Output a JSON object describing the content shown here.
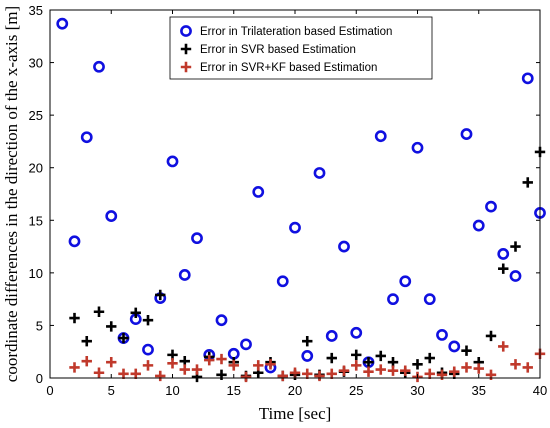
{
  "chart_data": {
    "type": "scatter",
    "title": "",
    "xlabel": "Time [sec]",
    "ylabel": "coordinate differences in the direction of the x-axis [m]",
    "xlim": [
      0,
      40
    ],
    "ylim": [
      0,
      35
    ],
    "x_ticks": [
      "0",
      "5",
      "10",
      "15",
      "20",
      "25",
      "30",
      "35",
      "40"
    ],
    "y_ticks": [
      "0",
      "5",
      "10",
      "15",
      "20",
      "25",
      "30",
      "35"
    ],
    "grid": false,
    "legend_position": "top-center",
    "series": [
      {
        "name": "Error in Trilateration based Estimation",
        "marker": "circle",
        "color": "#1010e0",
        "x": [
          1,
          2,
          3,
          4,
          5,
          6,
          7,
          8,
          9,
          10,
          11,
          12,
          13,
          14,
          15,
          16,
          17,
          18,
          19,
          20,
          21,
          22,
          23,
          24,
          25,
          26,
          27,
          28,
          29,
          30,
          31,
          32,
          33,
          34,
          35,
          36,
          37,
          38,
          39,
          40
        ],
        "y": [
          33.7,
          13.0,
          22.9,
          29.6,
          15.4,
          3.8,
          5.6,
          2.7,
          7.6,
          20.6,
          9.8,
          13.3,
          2.2,
          5.5,
          2.3,
          3.2,
          17.7,
          1.0,
          9.2,
          14.3,
          2.1,
          19.5,
          4.0,
          12.5,
          4.3,
          1.5,
          23.0,
          7.5,
          9.2,
          21.9,
          7.5,
          4.1,
          3.0,
          23.2,
          14.5,
          16.3,
          11.8,
          9.7,
          28.5,
          15.7
        ]
      },
      {
        "name": "Error in SVR based Estimation",
        "marker": "plus",
        "color": "#000000",
        "x": [
          2,
          3,
          4,
          5,
          6,
          7,
          8,
          9,
          10,
          11,
          12,
          13,
          14,
          15,
          16,
          17,
          18,
          19,
          20,
          21,
          22,
          23,
          24,
          25,
          26,
          27,
          28,
          29,
          30,
          31,
          32,
          33,
          34,
          35,
          36,
          37,
          38,
          39,
          40
        ],
        "y": [
          5.7,
          3.5,
          6.3,
          4.9,
          3.8,
          6.2,
          5.5,
          7.9,
          2.2,
          1.6,
          0.1,
          2.0,
          0.3,
          1.5,
          0.2,
          0.5,
          1.5,
          0.2,
          0.3,
          3.5,
          0.3,
          1.9,
          0.6,
          2.2,
          1.5,
          2.1,
          1.5,
          0.5,
          1.3,
          1.9,
          0.5,
          0.4,
          2.6,
          1.5,
          4.0,
          10.4,
          12.5,
          18.6,
          21.5
        ]
      },
      {
        "name": "Error in SVR+KF based Estimation",
        "marker": "plus",
        "color": "#c0392b",
        "x": [
          2,
          3,
          4,
          5,
          6,
          7,
          8,
          9,
          10,
          11,
          12,
          13,
          14,
          15,
          16,
          17,
          18,
          19,
          20,
          21,
          22,
          23,
          24,
          25,
          26,
          27,
          28,
          29,
          30,
          31,
          32,
          33,
          34,
          35,
          36,
          37,
          38,
          39,
          40
        ],
        "y": [
          1.0,
          1.6,
          0.5,
          1.5,
          0.4,
          0.4,
          1.2,
          0.2,
          1.4,
          0.8,
          0.8,
          1.7,
          1.8,
          1.2,
          0.1,
          1.2,
          1.3,
          0.2,
          0.5,
          0.4,
          0.2,
          0.4,
          0.7,
          1.2,
          0.6,
          0.8,
          0.7,
          0.7,
          0.1,
          0.4,
          0.3,
          0.6,
          1.0,
          0.9,
          0.3,
          3.0,
          1.3,
          1.0,
          2.3
        ]
      }
    ]
  }
}
